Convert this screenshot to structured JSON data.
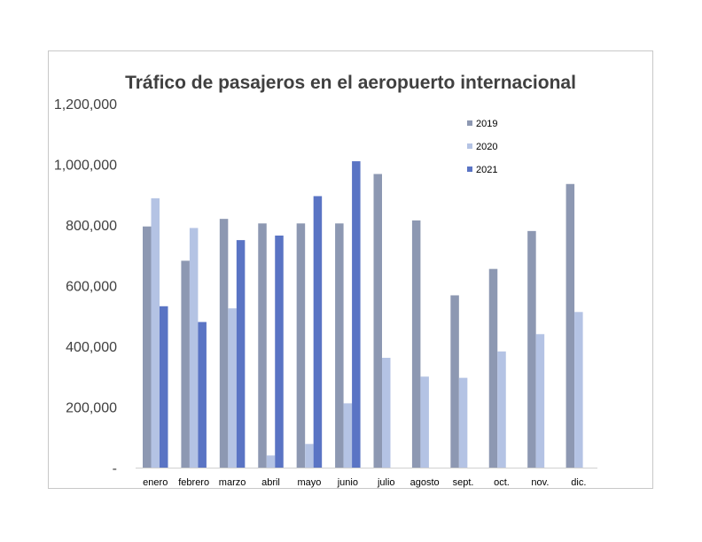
{
  "chart_data": {
    "type": "bar",
    "title": "Tráfico de pasajeros en el aeropuerto internacional",
    "xlabel": "",
    "ylabel": "",
    "ylim": [
      0,
      1200000
    ],
    "yticks": [
      0,
      200000,
      400000,
      600000,
      800000,
      1000000,
      1200000
    ],
    "ytick_labels": [
      "-",
      "200,000",
      "400,000",
      "600,000",
      "800,000",
      "1,000,000",
      "1,200,000"
    ],
    "grid": false,
    "legend_position": "top-right",
    "categories": [
      "enero",
      "febrero",
      "marzo",
      "abril",
      "mayo",
      "junio",
      "julio",
      "agosto",
      "sept.",
      "oct.",
      "nov.",
      "dic."
    ],
    "series": [
      {
        "name": "2019",
        "color": "#8d98b2",
        "values": [
          795000,
          682000,
          820000,
          805000,
          805000,
          805000,
          968000,
          815000,
          568000,
          655000,
          780000,
          935000
        ]
      },
      {
        "name": "2020",
        "color": "#b4c3e4",
        "values": [
          888000,
          790000,
          525000,
          40000,
          78000,
          212000,
          362000,
          300000,
          296000,
          383000,
          440000,
          513000
        ]
      },
      {
        "name": "2021",
        "color": "#5a74c4",
        "values": [
          532000,
          480000,
          750000,
          765000,
          895000,
          1010000,
          null,
          null,
          null,
          null,
          null,
          null
        ]
      }
    ]
  }
}
